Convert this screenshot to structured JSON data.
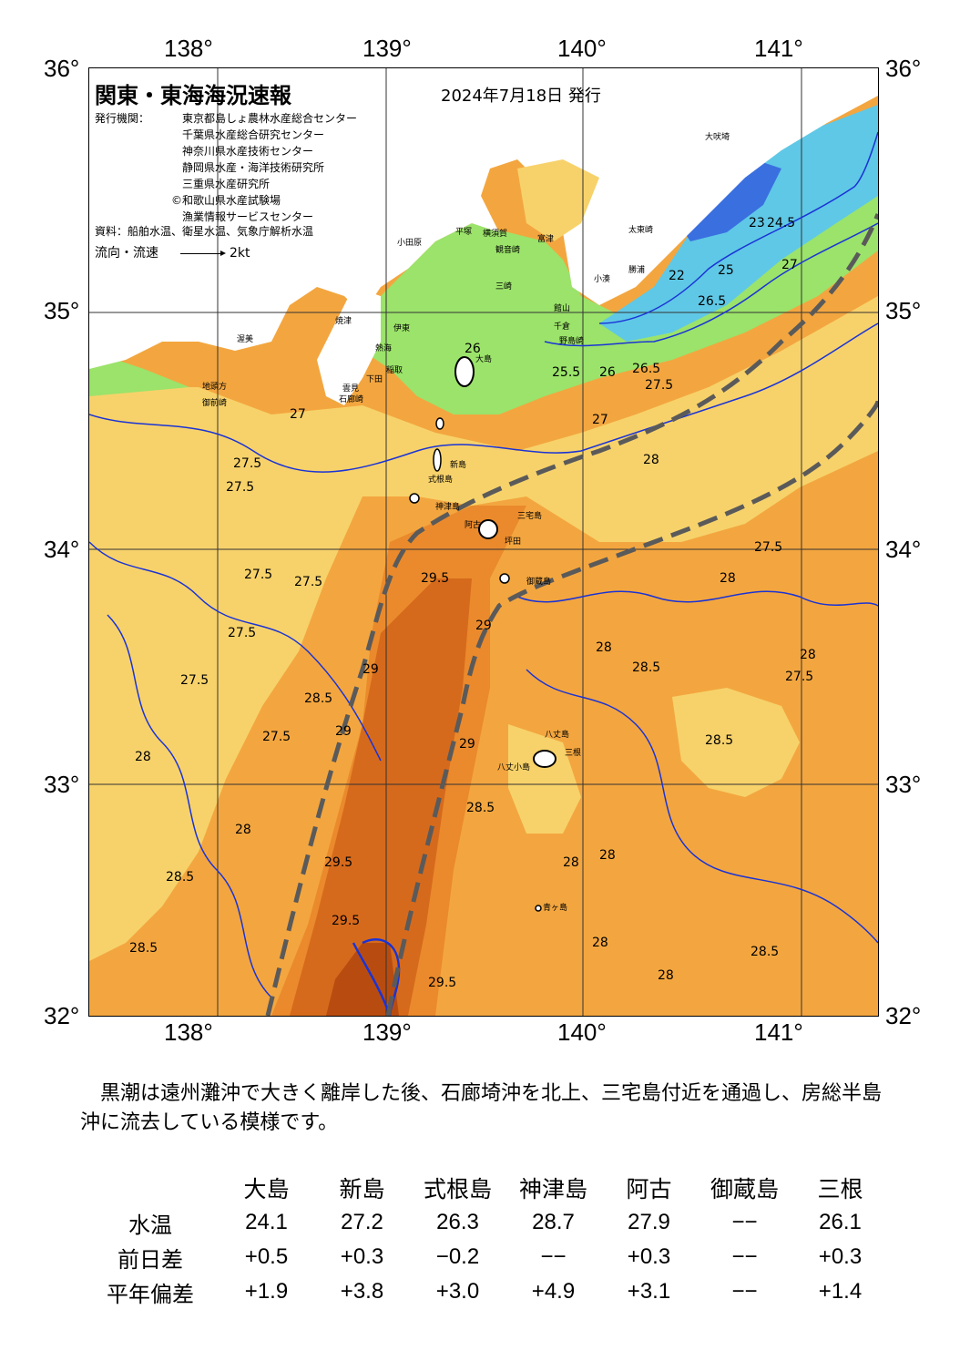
{
  "axes": {
    "top_ticks": [
      "138°",
      "139°",
      "140°",
      "141°"
    ],
    "bottom_ticks": [
      "138°",
      "139°",
      "140°",
      "141°"
    ],
    "left_ticks": [
      "36°",
      "35°",
      "34°",
      "33°",
      "32°"
    ],
    "right_ticks": [
      "36°",
      "35°",
      "34°",
      "33°",
      "32°"
    ]
  },
  "header": {
    "title": "関東・東海海況速報",
    "date": "2024年7月18日 発行",
    "publisher_label": "発行機関：",
    "publishers": [
      "東京都島しょ農林水産総合センター",
      "千葉県水産総合研究センター",
      "神奈川県水産技術センター",
      "静岡県水産・海洋技術研究所",
      "三重県水産研究所",
      "©和歌山県水産試験場",
      "漁業情報サービスセンター"
    ],
    "sources": "資料：船舶水温、衛星水温、気象庁解析水温",
    "flow_legend": "流向・流速",
    "flow_scale": "2kt"
  },
  "map": {
    "colors": {
      "t_lt26": "#5fc8e6",
      "t_26_27": "#9be36a",
      "t_27_28": "#f7d26a",
      "t_28_29": "#f3a63f",
      "t_29_29_5": "#ea8a2c",
      "t_gt29_5": "#d66a1c",
      "kuroshio_front": "#5a5a5a",
      "contour": "#1a33d6",
      "land": "#ffffff"
    },
    "contour_labels": [
      "27",
      "27.5",
      "28",
      "28.5",
      "29",
      "29.5",
      "26",
      "25.5",
      "26.5",
      "24.5",
      "22",
      "23",
      "25"
    ],
    "place_names": [
      "大島",
      "新島",
      "式根島",
      "神津島",
      "三宅島",
      "阿古",
      "坪田",
      "御蔵島",
      "八丈島",
      "三根",
      "八丈小島",
      "青ヶ島",
      "大吠埼",
      "太東崎",
      "勝浦",
      "小湊",
      "館山",
      "千倉",
      "野島崎",
      "富津",
      "観音崎",
      "三崎",
      "横須賀",
      "平塚",
      "小田原",
      "伊東",
      "稲取",
      "下田",
      "石廊崎",
      "御前崎",
      "渥美",
      "焼津",
      "熱海",
      "地頭方",
      "雲見"
    ]
  },
  "summary": "黒潮は遠州灘沖で大きく離岸した後、石廊埼沖を北上、三宅島付近を通過し、房総半島沖に流去している模様です。",
  "table": {
    "columns": [
      "大島",
      "新島",
      "式根島",
      "神津島",
      "阿古",
      "御蔵島",
      "三根"
    ],
    "rows": [
      {
        "label": "水温",
        "values": [
          "24.1",
          "27.2",
          "26.3",
          "28.7",
          "27.9",
          "−−",
          "26.1"
        ]
      },
      {
        "label": "前日差",
        "values": [
          "+0.5",
          "+0.3",
          "−0.2",
          "−−",
          "+0.3",
          "−−",
          "+0.3"
        ]
      },
      {
        "label": "平年偏差",
        "values": [
          "+1.9",
          "+3.8",
          "+3.0",
          "+4.9",
          "+3.1",
          "−−",
          "+1.4"
        ]
      }
    ]
  }
}
